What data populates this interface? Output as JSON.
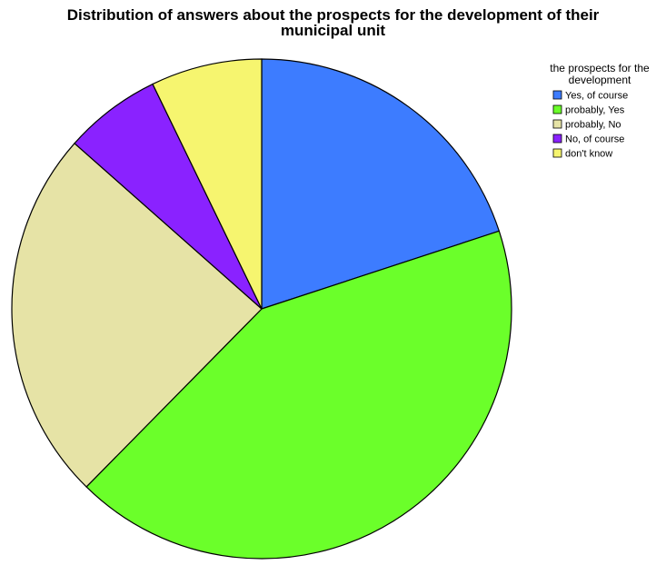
{
  "chart_data": {
    "type": "pie",
    "title": "Distribution of answers about the prospects for the development of their municipal unit",
    "title_lines": [
      "Distribution of answers about the prospects for the development of their",
      "municipal unit"
    ],
    "legend_title_lines": [
      "the prospects for the",
      "development"
    ],
    "legend_position": "top-right",
    "categories": [
      "Yes, of course",
      "probably, Yes",
      "probably, No",
      "No, of course",
      "don't know"
    ],
    "values": [
      20.0,
      42.5,
      24.2,
      6.3,
      7.2
    ],
    "colors": [
      "#3d7cff",
      "#6bff2a",
      "#e6e3a6",
      "#8a22ff",
      "#f6f56f"
    ],
    "start_angle_deg": 0,
    "direction": "clockwise"
  }
}
